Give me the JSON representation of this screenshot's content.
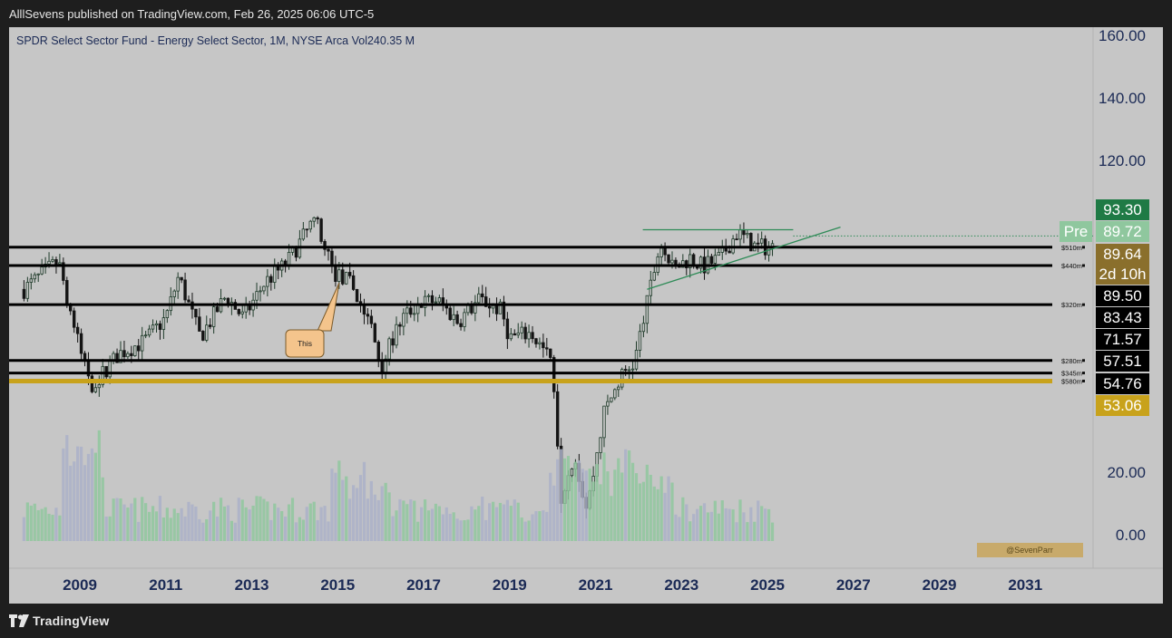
{
  "header": {
    "publish_text": "AlllSevens published on TradingView.com, Feb 26, 2025 06:06 UTC-5"
  },
  "footer": {
    "brand": "TradingView"
  },
  "chart": {
    "symbol_line": "SPDR Select Sector Fund - Energy Select Sector, 1M, NYSE Arca  Vol240.35 M",
    "watermark": "@SevenParr",
    "annotation": "This",
    "colors": {
      "up": "#1f3b2a",
      "down": "#141414",
      "gold": "#c8a21b",
      "green_line": "#2e8b57",
      "vol_up": "#8fc79e",
      "vol_down": "#aab0c8",
      "price_tag_green": "#1f7a45",
      "price_tag_black": "#000000"
    }
  },
  "chart_data": {
    "type": "candlestick",
    "title": "SPDR Select Sector Fund - Energy Select Sector, 1M, NYSE Arca",
    "volume_label": "Vol240.35 M",
    "x_ticks": [
      "2009",
      "2011",
      "2013",
      "2015",
      "2017",
      "2019",
      "2021",
      "2023",
      "2025",
      "2027",
      "2029",
      "2031"
    ],
    "y_ticks": [
      "160.00",
      "140.00",
      "120.00",
      "20.00",
      "0.00"
    ],
    "y_scale": "log",
    "anchors": [
      [
        2007.7,
        76
      ],
      [
        2008.5,
        85
      ],
      [
        2009.0,
        60
      ],
      [
        2009.3,
        52
      ],
      [
        2009.9,
        59
      ],
      [
        2010.5,
        62
      ],
      [
        2011.0,
        68
      ],
      [
        2011.3,
        80
      ],
      [
        2011.8,
        63
      ],
      [
        2012.4,
        74
      ],
      [
        2012.8,
        68
      ],
      [
        2013.3,
        78
      ],
      [
        2013.8,
        84
      ],
      [
        2014.5,
        101
      ],
      [
        2014.9,
        81
      ],
      [
        2015.3,
        78
      ],
      [
        2015.8,
        65
      ],
      [
        2016.0,
        56
      ],
      [
        2016.5,
        68
      ],
      [
        2016.9,
        72
      ],
      [
        2017.3,
        73
      ],
      [
        2017.8,
        67
      ],
      [
        2018.3,
        73
      ],
      [
        2018.8,
        70
      ],
      [
        2019.0,
        63
      ],
      [
        2019.5,
        64
      ],
      [
        2020.0,
        57
      ],
      [
        2020.2,
        34
      ],
      [
        2020.5,
        40
      ],
      [
        2020.8,
        32
      ],
      [
        2021.2,
        47
      ],
      [
        2021.6,
        54
      ],
      [
        2021.9,
        57
      ],
      [
        2022.2,
        72
      ],
      [
        2022.5,
        91
      ],
      [
        2022.8,
        82
      ],
      [
        2023.2,
        86
      ],
      [
        2023.5,
        83
      ],
      [
        2023.9,
        86
      ],
      [
        2024.3,
        95
      ],
      [
        2024.7,
        90
      ],
      [
        2025.1,
        89.5
      ]
    ],
    "levels": [
      {
        "label": "$510m",
        "price": 89.64,
        "color": "#000000"
      },
      {
        "label": "$440m",
        "price": 83.43,
        "color": "#000000"
      },
      {
        "label": "$320m",
        "price": 71.57,
        "color": "#000000"
      },
      {
        "label": "$280m",
        "price": 57.51,
        "color": "#000000"
      },
      {
        "label": "$345m",
        "price": 54.76,
        "color": "#000000"
      },
      {
        "label": "$580m",
        "price": 53.06,
        "color": "#c8a21b"
      }
    ],
    "price_tags": [
      {
        "text": "93.30",
        "bg": "#1f7a45",
        "fg": "#ffffff"
      },
      {
        "text": "Pre",
        "bg": "#8fc79e",
        "fg": "#ffffff",
        "pre": true
      },
      {
        "text": "89.72",
        "bg": "#8fc79e",
        "fg": "#ffffff"
      },
      {
        "text": "89.64",
        "bg": "#8a6f2c",
        "fg": "#ffffff"
      },
      {
        "text": "2d 10h",
        "bg": "#8a6f2c",
        "fg": "#ffffff"
      },
      {
        "text": "89.50",
        "bg": "#000000",
        "fg": "#ffffff"
      },
      {
        "text": "83.43",
        "bg": "#000000",
        "fg": "#ffffff"
      },
      {
        "text": "71.57",
        "bg": "#000000",
        "fg": "#ffffff"
      },
      {
        "text": "57.51",
        "bg": "#000000",
        "fg": "#ffffff"
      },
      {
        "text": "54.76",
        "bg": "#000000",
        "fg": "#ffffff"
      },
      {
        "text": "53.06",
        "bg": "#c8a21b",
        "fg": "#ffffff"
      }
    ],
    "trendlines": [
      {
        "name": "resistance",
        "from": [
          2022.1,
          96
        ],
        "to": [
          2025.6,
          96
        ]
      },
      {
        "name": "rising-support",
        "from": [
          2022.2,
          76
        ],
        "to": [
          2026.7,
          97
        ]
      }
    ],
    "grid": true
  }
}
